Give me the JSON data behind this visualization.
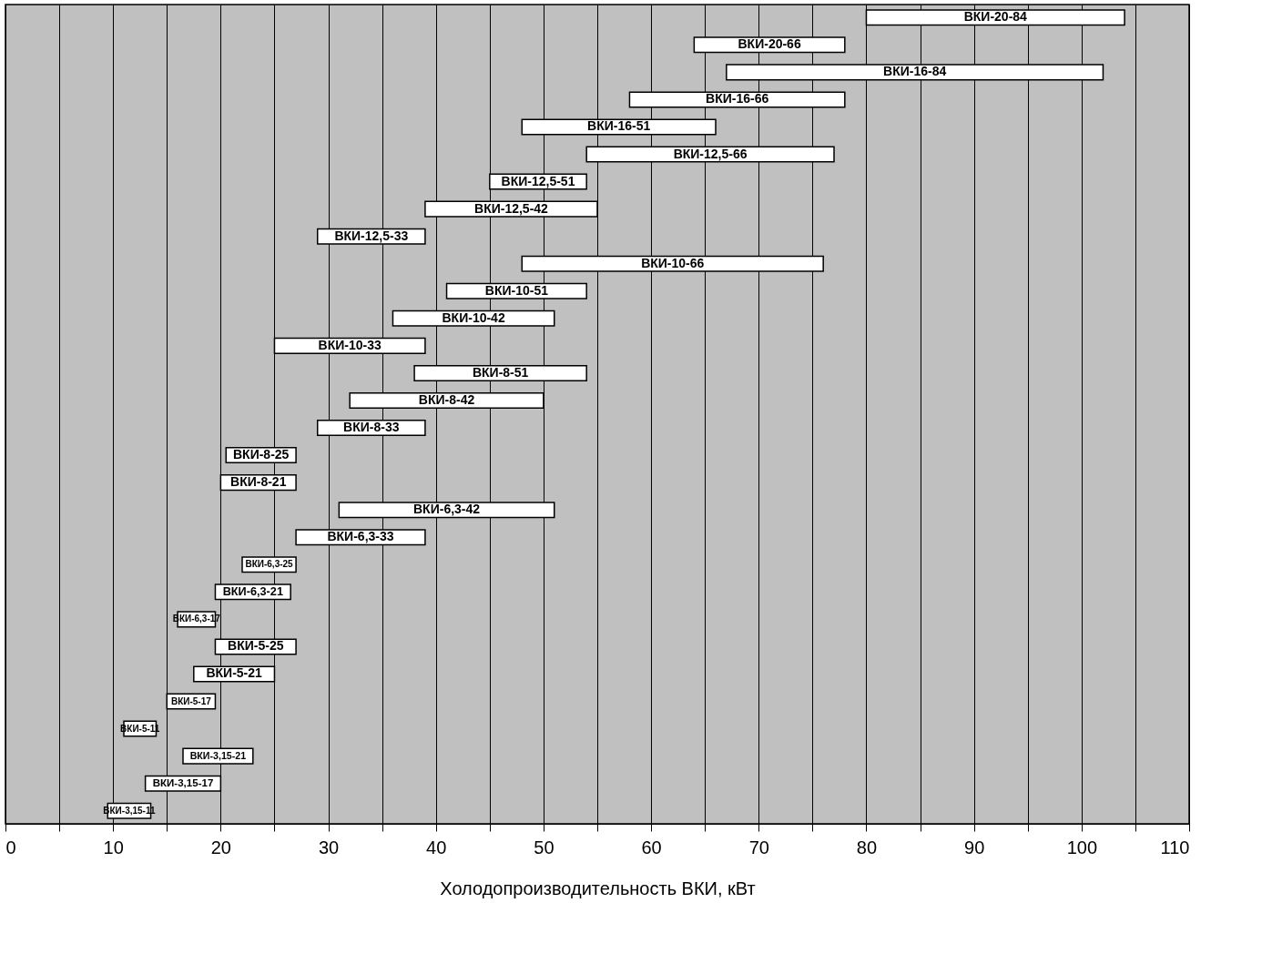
{
  "chart_data": {
    "type": "bar",
    "orientation": "horizontal",
    "xlabel": "Холодопроизводительность ВКИ, кВт",
    "categories": [
      "ВКИ-20-84",
      "ВКИ-20-66",
      "ВКИ-16-84",
      "ВКИ-16-66",
      "ВКИ-16-51",
      "ВКИ-12,5-66",
      "ВКИ-12,5-51",
      "ВКИ-12,5-42",
      "ВКИ-12,5-33",
      "ВКИ-10-66",
      "ВКИ-10-51",
      "ВКИ-10-42",
      "ВКИ-10-33",
      "ВКИ-8-51",
      "ВКИ-8-42",
      "ВКИ-8-33",
      "ВКИ-8-25",
      "ВКИ-8-21",
      "ВКИ-6,3-42",
      "ВКИ-6,3-33",
      "ВКИ-6,3-25",
      "ВКИ-6,3-21",
      "ВКИ-6,3-17",
      "ВКИ-5-25",
      "ВКИ-5-21",
      "ВКИ-5-17",
      "ВКИ-5-11",
      "ВКИ-3,15-21",
      "ВКИ-3,15-17",
      "ВКИ-3,15-11"
    ],
    "base": [
      80,
      64,
      67,
      58,
      48,
      54,
      45,
      39,
      29,
      48,
      41,
      36,
      25,
      38,
      32,
      29,
      20.5,
      20,
      31,
      27,
      22,
      19.5,
      16,
      19.5,
      17.5,
      15,
      11,
      16.5,
      13,
      9.5
    ],
    "values": [
      24,
      14,
      35,
      20,
      18,
      23,
      9,
      16,
      10,
      28,
      13,
      15,
      14,
      16,
      18,
      10,
      6.5,
      7,
      20,
      12,
      5,
      7,
      3.5,
      7.5,
      7.5,
      4.5,
      3,
      6.5,
      7,
      4
    ],
    "color": "#ffffff",
    "xlim": [
      0,
      110
    ],
    "xticks": [
      0,
      {
        "value": 5,
        "label": null
      },
      10,
      {
        "value": 15,
        "label": null
      },
      20,
      {
        "value": 25,
        "label": null
      },
      30,
      {
        "value": 35,
        "label": null
      },
      40,
      {
        "value": 45,
        "label": null
      },
      50,
      {
        "value": 55,
        "label": null
      },
      60,
      {
        "value": 65,
        "label": null
      },
      70,
      {
        "value": 75,
        "label": null
      },
      80,
      {
        "value": 85,
        "label": null
      },
      90,
      {
        "value": 95,
        "label": null
      },
      100,
      {
        "value": 105,
        "label": null
      },
      110
    ],
    "grid": "x",
    "tick_labels": "x"
  }
}
